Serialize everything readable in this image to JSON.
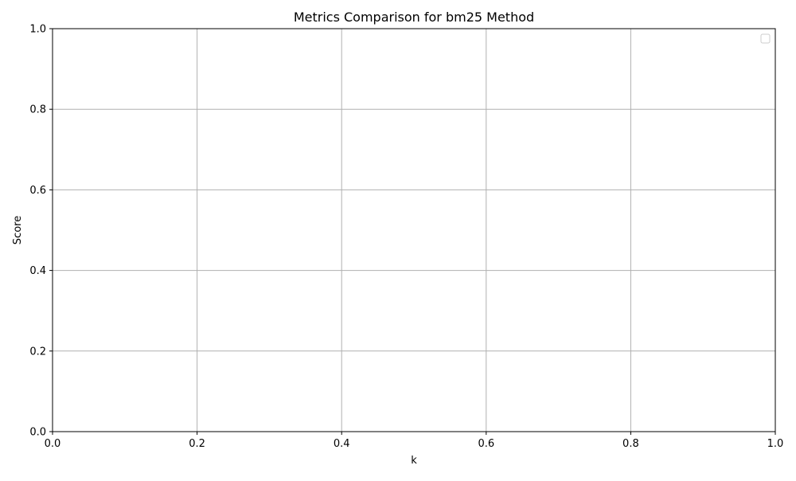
{
  "chart_data": {
    "type": "line",
    "title": "Metrics Comparison for bm25 Method",
    "xlabel": "k",
    "ylabel": "Score",
    "xlim": [
      0.0,
      1.0
    ],
    "ylim": [
      0.0,
      1.0
    ],
    "xticks": [
      "0.0",
      "0.2",
      "0.4",
      "0.6",
      "0.8",
      "1.0"
    ],
    "yticks": [
      "0.0",
      "0.2",
      "0.4",
      "0.6",
      "0.8",
      "1.0"
    ],
    "grid": true,
    "legend": {
      "placement": "top-right",
      "entries": []
    },
    "series": []
  }
}
